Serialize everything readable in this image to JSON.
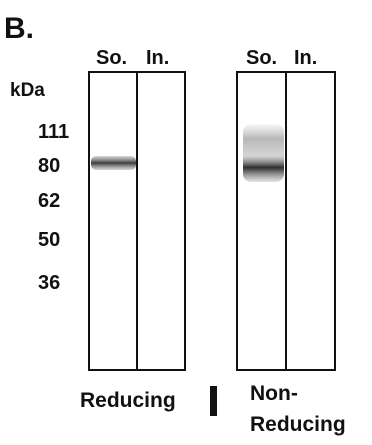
{
  "panel_label": "B.",
  "unit_label": "kDa",
  "markers": [
    111,
    80,
    62,
    50,
    36
  ],
  "blots": [
    {
      "lanes": [
        "So.",
        "In."
      ],
      "condition": [
        "Reducing"
      ]
    },
    {
      "lanes": [
        "So.",
        "In."
      ],
      "condition": [
        "Non-",
        "Reducing"
      ]
    }
  ]
}
